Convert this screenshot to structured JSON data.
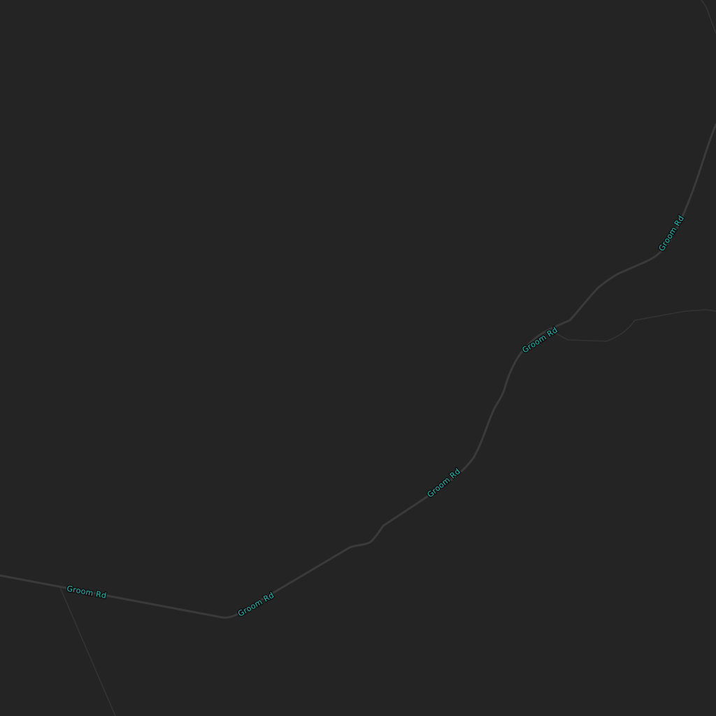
{
  "map": {
    "background_color": "#242424",
    "road_color": "#3a3a3a",
    "minor_road_color": "#333333",
    "label_color": "#2fb7b0",
    "roads": [
      {
        "name": "Groom Rd",
        "labels": [
          "Groom Rd",
          "Groom Rd",
          "Groom Rd",
          "Groom Rd",
          "Groom Rd"
        ]
      }
    ]
  }
}
